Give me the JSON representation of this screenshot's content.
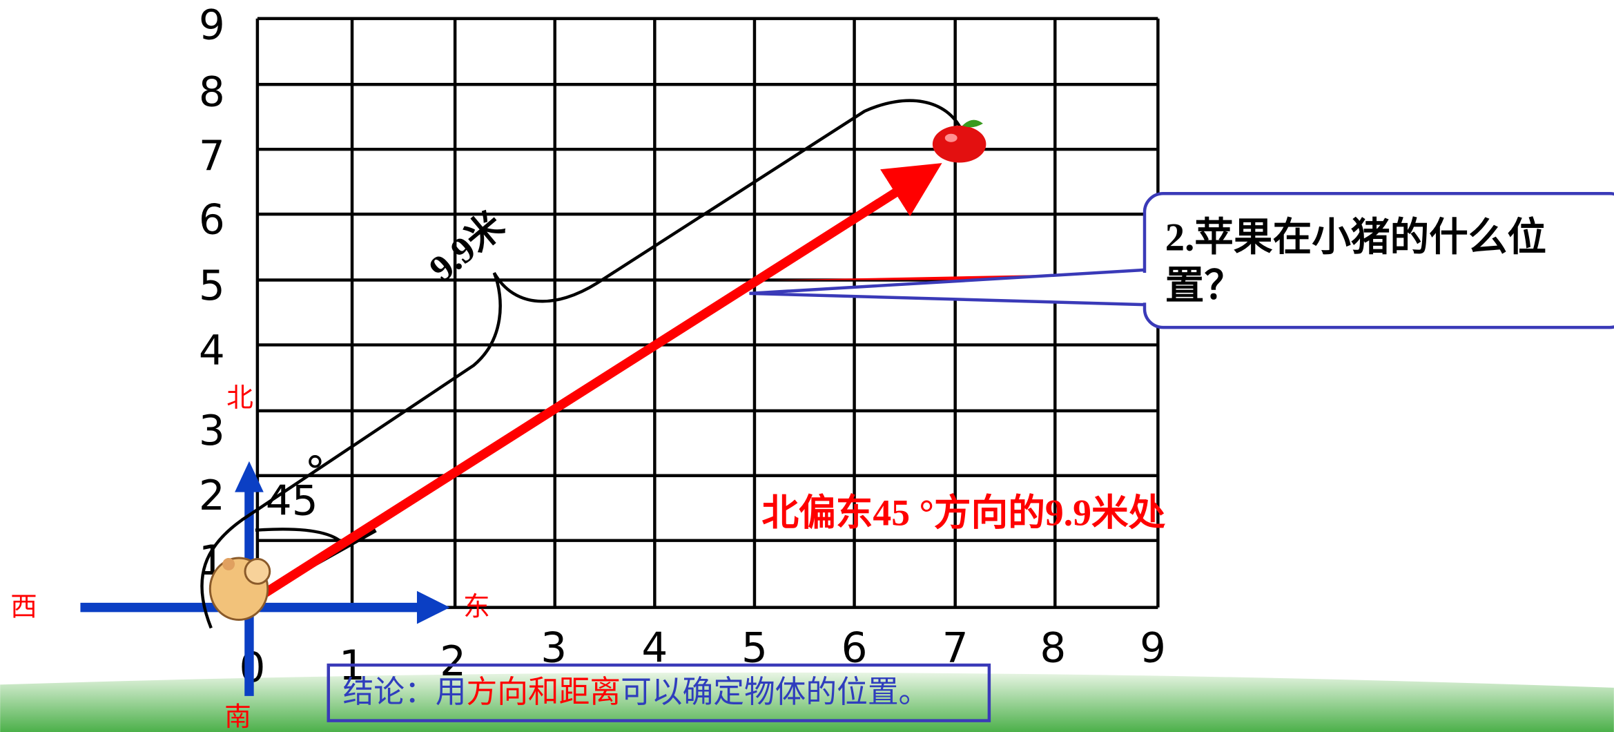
{
  "diagram": {
    "y_labels": [
      "9",
      "8",
      "7",
      "6",
      "5",
      "4",
      "3",
      "2",
      "1"
    ],
    "x_labels": [
      "0",
      "1",
      "2",
      "3",
      "4",
      "5",
      "6",
      "7",
      "8",
      "9"
    ],
    "directions": {
      "north": "北",
      "south": "南",
      "east": "东",
      "west": "西"
    },
    "distance_label": "9.9米",
    "angle_label": "45",
    "degree_mark": "°",
    "question": [
      "2.苹果在小猪的什么位",
      "置？"
    ],
    "answer": "北偏东45 °方向的9.9米处",
    "conclusion": [
      "结论：用",
      "方向和距离",
      "可以确定物体的位置。"
    ]
  }
}
